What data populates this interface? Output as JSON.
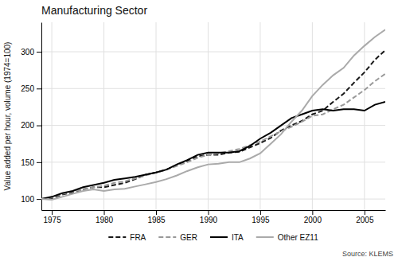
{
  "chart_data": {
    "type": "line",
    "title": "Manufacturing Sector",
    "y_label": "Value added per hour, volume (1974=100)",
    "annotations": [
      "Source: KLEMS"
    ],
    "x": [
      1974,
      1975,
      1976,
      1977,
      1978,
      1979,
      1980,
      1981,
      1982,
      1983,
      1984,
      1985,
      1986,
      1987,
      1988,
      1989,
      1990,
      1991,
      1992,
      1993,
      1994,
      1995,
      1996,
      1997,
      1998,
      1999,
      2000,
      2001,
      2002,
      2003,
      2004,
      2005,
      2006,
      2007
    ],
    "series": [
      {
        "name": "FRA",
        "color": "#1a1a1a",
        "line_style": "dashed",
        "values": [
          100,
          101,
          106,
          109,
          113,
          116,
          116,
          119,
          122,
          127,
          133,
          136,
          140,
          146,
          152,
          158,
          160,
          160,
          163,
          164,
          170,
          176,
          183,
          193,
          200,
          206,
          215,
          220,
          232,
          243,
          258,
          272,
          289,
          302
        ]
      },
      {
        "name": "GER",
        "color": "#999999",
        "line_style": "dashed",
        "values": [
          100,
          102,
          107,
          110,
          113,
          116,
          118,
          122,
          124,
          128,
          132,
          136,
          140,
          145,
          150,
          156,
          160,
          162,
          165,
          168,
          173,
          178,
          185,
          192,
          198,
          205,
          213,
          215,
          222,
          228,
          238,
          248,
          260,
          270
        ]
      },
      {
        "name": "ITA",
        "color": "#000000",
        "line_style": "solid",
        "values": [
          100,
          103,
          108,
          111,
          116,
          119,
          122,
          126,
          128,
          130,
          133,
          136,
          140,
          147,
          153,
          160,
          163,
          163,
          163,
          165,
          172,
          182,
          190,
          200,
          210,
          215,
          220,
          222,
          220,
          222,
          222,
          220,
          228,
          232
        ]
      },
      {
        "name": "Other EZ11",
        "color": "#aaaaaa",
        "line_style": "solid",
        "values": [
          100,
          99,
          103,
          107,
          111,
          113,
          111,
          113,
          114,
          117,
          120,
          123,
          127,
          132,
          138,
          143,
          147,
          148,
          150,
          150,
          155,
          162,
          175,
          188,
          205,
          220,
          240,
          255,
          268,
          278,
          295,
          308,
          320,
          330
        ]
      }
    ],
    "xlim": [
      1974,
      2007
    ],
    "ylim": [
      85,
      340
    ],
    "xticks": [
      1975,
      1980,
      1985,
      1990,
      1995,
      2000,
      2005
    ],
    "yticks": [
      100,
      150,
      200,
      250,
      300
    ],
    "grid": true,
    "legend": "bottom"
  }
}
